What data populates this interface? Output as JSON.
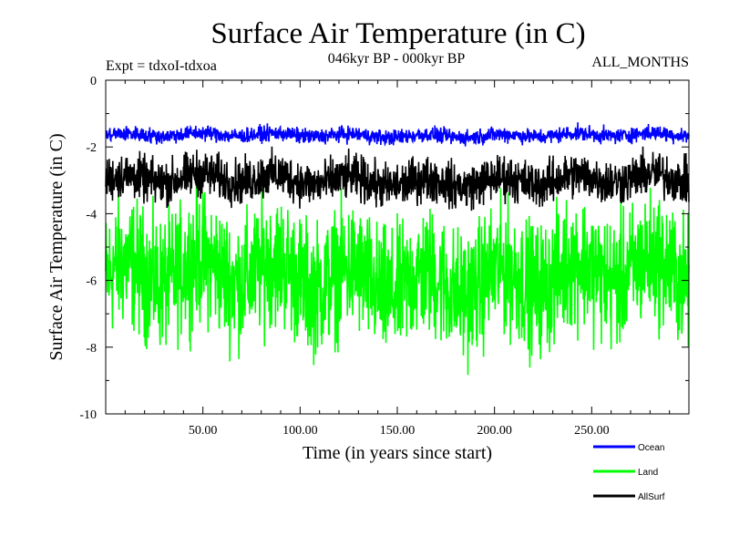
{
  "chart_data": {
    "type": "line",
    "title": "Surface Air Temperature (in C)",
    "subtitle_left": "Expt = tdxoI-tdxoa",
    "subtitle_center": "046kyr BP - 000kyr BP",
    "subtitle_right": "ALL_MONTHS",
    "xlabel": "Time (in years since start)",
    "ylabel": "Surface Air Temperature (in C)",
    "xlim": [
      0,
      300
    ],
    "ylim": [
      -10,
      0
    ],
    "x_ticks": [
      50,
      100,
      150,
      200,
      250
    ],
    "x_tick_labels": [
      "50.00",
      "100.00",
      "150.00",
      "200.00",
      "250.00"
    ],
    "y_ticks": [
      0,
      -2,
      -4,
      -6,
      -8,
      -10
    ],
    "y_tick_labels": [
      "0",
      "-2",
      "-4",
      "-6",
      "-8",
      "-10"
    ],
    "grid": false,
    "legend_position": "bottom-right",
    "series": [
      {
        "name": "Ocean",
        "color": "#0000ff",
        "mean": -1.65,
        "spread": 0.55
      },
      {
        "name": "Land",
        "color": "#00ff00",
        "mean": -5.9,
        "spread": 4.6
      },
      {
        "name": "AllSurf",
        "color": "#000000",
        "mean": -3.0,
        "spread": 1.6
      }
    ],
    "legend": [
      {
        "name": "Ocean",
        "label": "Ocean",
        "color": "#0000ff"
      },
      {
        "name": "Land",
        "label": "Land",
        "color": "#00ff00"
      },
      {
        "name": "AllSurf",
        "label": "AllSurf",
        "color": "#000000"
      }
    ]
  }
}
